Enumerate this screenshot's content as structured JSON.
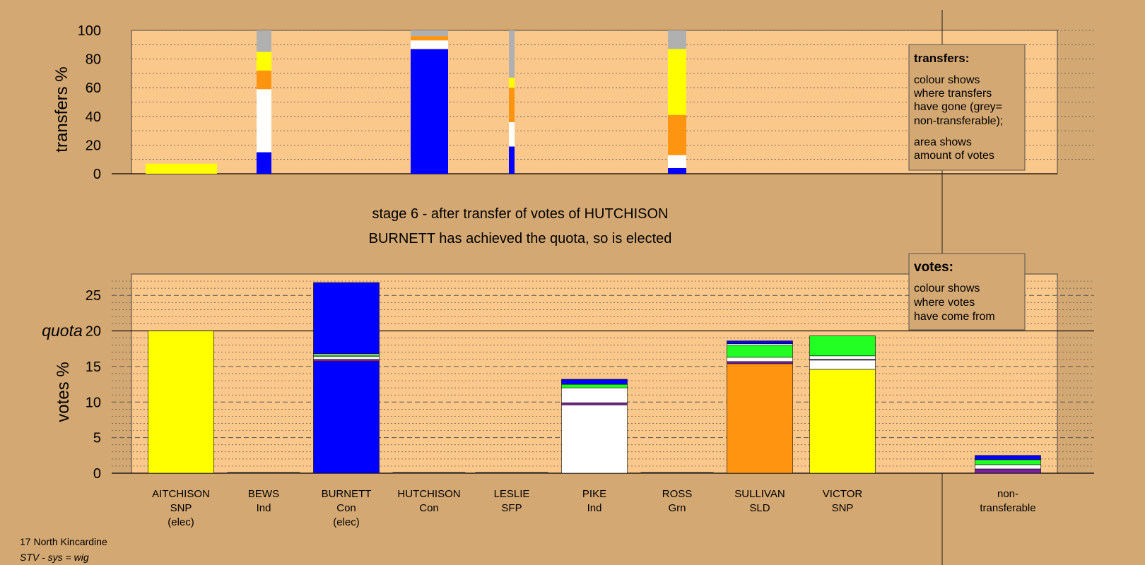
{
  "colors": {
    "background": "#d4a872",
    "plot_area": "#fbc88b",
    "snp": "#ffff00",
    "con": "#0000ff",
    "ind": "#ffffff",
    "sld": "#ff9410",
    "grn": "#22ff22",
    "sfp": "#7a1fa2",
    "non_transferable": "#b0b0b0"
  },
  "stage": {
    "line1": "stage 6 - after transfer of votes of HUTCHISON",
    "line2": "BURNETT has achieved the quota, so is elected"
  },
  "transfers_legend": {
    "title": "transfers:",
    "lines1": [
      "colour shows",
      "where transfers",
      "have gone (grey=",
      "non-transferable);"
    ],
    "lines2": [
      "area shows",
      "amount of votes"
    ]
  },
  "votes_legend": {
    "title": "votes:",
    "lines": [
      "colour shows",
      "where votes",
      "have come from"
    ]
  },
  "footer": {
    "constituency": "17 North Kincardine",
    "system": "STV - sys = wig"
  },
  "chart_data": [
    {
      "type": "bar",
      "stacked": true,
      "ylabel": "transfers %",
      "ylim": [
        0,
        100
      ],
      "yticks": [
        0,
        20,
        40,
        60,
        80,
        100
      ],
      "grid": true,
      "note": "variable-width bars; width = amount of votes transferred",
      "bars": [
        {
          "candidate": "AITCHISON",
          "segments": [
            {
              "color": "snp",
              "value": 7
            }
          ]
        },
        {
          "candidate": "BEWS",
          "segments": [
            {
              "color": "con",
              "value": 15
            },
            {
              "color": "ind",
              "value": 44
            },
            {
              "color": "sld",
              "value": 13
            },
            {
              "color": "snp",
              "value": 13
            },
            {
              "color": "non_transferable",
              "value": 15
            }
          ]
        },
        {
          "candidate": "HUTCHISON",
          "segments": [
            {
              "color": "con",
              "value": 87
            },
            {
              "color": "ind",
              "value": 6
            },
            {
              "color": "sld",
              "value": 3
            },
            {
              "color": "non_transferable",
              "value": 4
            }
          ]
        },
        {
          "candidate": "LESLIE",
          "segments": [
            {
              "color": "con",
              "value": 19
            },
            {
              "color": "ind",
              "value": 17
            },
            {
              "color": "sld",
              "value": 24
            },
            {
              "color": "snp",
              "value": 7
            },
            {
              "color": "non_transferable",
              "value": 33
            }
          ]
        },
        {
          "candidate": "ROSS",
          "segments": [
            {
              "color": "con",
              "value": 4
            },
            {
              "color": "ind",
              "value": 9
            },
            {
              "color": "sld",
              "value": 28
            },
            {
              "color": "snp",
              "value": 46
            },
            {
              "color": "non_transferable",
              "value": 13
            }
          ]
        }
      ]
    },
    {
      "type": "bar",
      "stacked": true,
      "ylabel": "votes %",
      "ylim": [
        0,
        28
      ],
      "yticks": [
        0,
        5,
        10,
        15,
        20,
        25
      ],
      "quota": 20,
      "quota_label": "quota",
      "grid": true,
      "categories": [
        {
          "name": "AITCHISON",
          "party": "SNP",
          "status": "(elec)"
        },
        {
          "name": "BEWS",
          "party": "Ind",
          "status": ""
        },
        {
          "name": "BURNETT",
          "party": "Con",
          "status": "(elec)"
        },
        {
          "name": "HUTCHISON",
          "party": "Con",
          "status": ""
        },
        {
          "name": "LESLIE",
          "party": "SFP",
          "status": ""
        },
        {
          "name": "PIKE",
          "party": "Ind",
          "status": ""
        },
        {
          "name": "ROSS",
          "party": "Grn",
          "status": ""
        },
        {
          "name": "SULLIVAN",
          "party": "SLD",
          "status": ""
        },
        {
          "name": "VICTOR",
          "party": "SNP",
          "status": ""
        }
      ],
      "nontransferable_label": [
        "non-",
        "transferable"
      ],
      "stacks": [
        [
          {
            "color": "snp",
            "value": 20.0
          }
        ],
        [],
        [
          {
            "color": "con",
            "value": 15.7
          },
          {
            "color": "sfp",
            "value": 0.3
          },
          {
            "color": "ind",
            "value": 0.4
          },
          {
            "color": "grn",
            "value": 0.2
          },
          {
            "color": "ind",
            "value": 0.2
          },
          {
            "color": "con",
            "value": 10.0
          }
        ],
        [],
        [],
        [
          {
            "color": "ind",
            "value": 9.6
          },
          {
            "color": "sfp",
            "value": 0.3
          },
          {
            "color": "ind",
            "value": 2.1
          },
          {
            "color": "grn",
            "value": 0.5
          },
          {
            "color": "con",
            "value": 0.7
          }
        ],
        [],
        [
          {
            "color": "sld",
            "value": 15.4
          },
          {
            "color": "sfp",
            "value": 0.3
          },
          {
            "color": "ind",
            "value": 0.6
          },
          {
            "color": "grn",
            "value": 1.7
          },
          {
            "color": "ind",
            "value": 0.2
          },
          {
            "color": "con",
            "value": 0.4
          }
        ],
        [
          {
            "color": "snp",
            "value": 14.6
          },
          {
            "color": "ind",
            "value": 1.3
          },
          {
            "color": "sfp",
            "value": 0.1
          },
          {
            "color": "ind",
            "value": 0.5
          },
          {
            "color": "grn",
            "value": 2.8
          }
        ],
        [
          {
            "color": "sfp",
            "value": 0.6
          },
          {
            "color": "ind",
            "value": 0.6
          },
          {
            "color": "grn",
            "value": 0.7
          },
          {
            "color": "con",
            "value": 0.6
          }
        ]
      ]
    }
  ]
}
